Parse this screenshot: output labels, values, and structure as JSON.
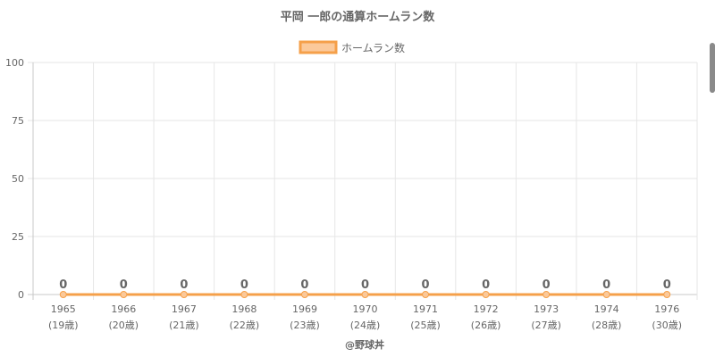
{
  "chart_data": {
    "type": "line",
    "title": "平岡 一郎の通算ホームラン数",
    "categories": [
      "1965",
      "1966",
      "1967",
      "1968",
      "1969",
      "1970",
      "1971",
      "1972",
      "1973",
      "1974",
      "1976"
    ],
    "age_labels": [
      "(19歳)",
      "(20歳)",
      "(21歳)",
      "(22歳)",
      "(23歳)",
      "(24歳)",
      "(25歳)",
      "(26歳)",
      "(27歳)",
      "(28歳)",
      "(30歳)"
    ],
    "series": [
      {
        "name": "ホームラン数",
        "values": [
          0,
          0,
          0,
          0,
          0,
          0,
          0,
          0,
          0,
          0,
          0
        ]
      }
    ],
    "ylim": [
      0,
      100
    ],
    "yticks": [
      "0",
      "25",
      "50",
      "75",
      "100"
    ],
    "grid": true,
    "legend": "top",
    "colors": {
      "line": "#f5a04a",
      "fill": "#fbc99a"
    }
  },
  "credit": "@野球丼"
}
